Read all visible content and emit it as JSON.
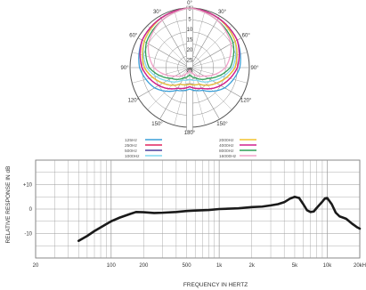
{
  "chart_data": [
    {
      "type": "polar",
      "title": "",
      "angle_labels": [
        "0°",
        "30°",
        "30°",
        "60°",
        "60°",
        "90°",
        "90°",
        "120°",
        "120°",
        "150°",
        "150°",
        "180°"
      ],
      "radial_labels": [
        "0",
        "5",
        "10",
        "15",
        "20",
        "25",
        "dB"
      ],
      "radial_unit": "dB",
      "rlim": [
        -25,
        0
      ],
      "series": [
        {
          "name": "125Hz",
          "color": "#3a9fd8",
          "points": [
            [
              0,
              0
            ],
            [
              30,
              -1
            ],
            [
              60,
              -2
            ],
            [
              90,
              -4
            ],
            [
              120,
              -8
            ],
            [
              150,
              -14
            ],
            [
              180,
              -16
            ],
            [
              210,
              -14
            ],
            [
              240,
              -8
            ],
            [
              270,
              -4
            ],
            [
              300,
              -2
            ],
            [
              330,
              -1
            ]
          ]
        },
        {
          "name": "250Hz",
          "color": "#e0245e",
          "points": [
            [
              0,
              0
            ],
            [
              30,
              -1
            ],
            [
              60,
              -2
            ],
            [
              90,
              -5
            ],
            [
              120,
              -10
            ],
            [
              150,
              -15
            ],
            [
              180,
              -17
            ],
            [
              210,
              -15
            ],
            [
              240,
              -10
            ],
            [
              270,
              -5
            ],
            [
              300,
              -2
            ],
            [
              330,
              -1
            ]
          ]
        },
        {
          "name": "500Hz",
          "color": "#4b3f9c",
          "points": [
            [
              0,
              0
            ],
            [
              30,
              -1
            ],
            [
              60,
              -3
            ],
            [
              90,
              -6
            ],
            [
              120,
              -12
            ],
            [
              150,
              -17
            ],
            [
              180,
              -18
            ],
            [
              210,
              -17
            ],
            [
              240,
              -12
            ],
            [
              270,
              -6
            ],
            [
              300,
              -3
            ],
            [
              330,
              -1
            ]
          ]
        },
        {
          "name": "1000Hz",
          "color": "#7fd8ef",
          "points": [
            [
              0,
              0
            ],
            [
              30,
              -1
            ],
            [
              60,
              -3
            ],
            [
              90,
              -7
            ],
            [
              120,
              -14
            ],
            [
              150,
              -19
            ],
            [
              180,
              -20
            ],
            [
              210,
              -19
            ],
            [
              240,
              -14
            ],
            [
              270,
              -7
            ],
            [
              300,
              -3
            ],
            [
              330,
              -1
            ]
          ]
        },
        {
          "name": "2000Hz",
          "color": "#f2c32e",
          "points": [
            [
              0,
              0
            ],
            [
              30,
              -1
            ],
            [
              60,
              -3
            ],
            [
              90,
              -6
            ],
            [
              120,
              -12
            ],
            [
              150,
              -17
            ],
            [
              180,
              -18
            ],
            [
              210,
              -17
            ],
            [
              240,
              -12
            ],
            [
              270,
              -6
            ],
            [
              300,
              -3
            ],
            [
              330,
              -1
            ]
          ]
        },
        {
          "name": "4000Hz",
          "color": "#d0218f",
          "points": [
            [
              0,
              0
            ],
            [
              30,
              -1
            ],
            [
              60,
              -2
            ],
            [
              90,
              -5
            ],
            [
              120,
              -10
            ],
            [
              150,
              -15
            ],
            [
              180,
              -17
            ],
            [
              210,
              -15
            ],
            [
              240,
              -10
            ],
            [
              270,
              -5
            ],
            [
              300,
              -2
            ],
            [
              330,
              -1
            ]
          ]
        },
        {
          "name": "8000Hz",
          "color": "#2f9f57",
          "points": [
            [
              0,
              0
            ],
            [
              30,
              -2
            ],
            [
              60,
              -4
            ],
            [
              90,
              -8
            ],
            [
              120,
              -16
            ],
            [
              150,
              -20
            ],
            [
              180,
              -22
            ],
            [
              210,
              -20
            ],
            [
              240,
              -16
            ],
            [
              270,
              -8
            ],
            [
              300,
              -4
            ],
            [
              330,
              -2
            ]
          ]
        },
        {
          "name": "16000Hz",
          "color": "#f2a0c8",
          "points": [
            [
              0,
              0
            ],
            [
              30,
              -2
            ],
            [
              60,
              -5
            ],
            [
              90,
              -10
            ],
            [
              120,
              -18
            ],
            [
              150,
              -22
            ],
            [
              180,
              -24
            ],
            [
              210,
              -22
            ],
            [
              240,
              -18
            ],
            [
              270,
              -10
            ],
            [
              300,
              -5
            ],
            [
              330,
              -2
            ]
          ]
        }
      ]
    },
    {
      "type": "line",
      "title": "",
      "xlabel": "FREQUENCY IN HERTZ",
      "ylabel": "RELATIVE RESPONSE IN dB",
      "xscale": "log",
      "xlim": [
        20,
        20000
      ],
      "ylim": [
        -20,
        20
      ],
      "xticks": [
        {
          "value": 20,
          "label": "20"
        },
        {
          "value": 100,
          "label": "100"
        },
        {
          "value": 200,
          "label": "200"
        },
        {
          "value": 500,
          "label": "500"
        },
        {
          "value": 1000,
          "label": "1k"
        },
        {
          "value": 2000,
          "label": "2k"
        },
        {
          "value": 5000,
          "label": "5k"
        },
        {
          "value": 10000,
          "label": "10k"
        },
        {
          "value": 20000,
          "label": "20kH"
        }
      ],
      "yticks": [
        {
          "value": 10,
          "label": "+10"
        },
        {
          "value": 0,
          "label": "0"
        },
        {
          "value": -10,
          "label": "-10"
        }
      ],
      "grid": true,
      "series": [
        {
          "color": "#1a1a1a",
          "points": [
            [
              50,
              -13
            ],
            [
              60,
              -11
            ],
            [
              70,
              -9
            ],
            [
              80,
              -7.5
            ],
            [
              100,
              -5
            ],
            [
              120,
              -3.5
            ],
            [
              150,
              -2
            ],
            [
              170,
              -1.2
            ],
            [
              200,
              -1.3
            ],
            [
              250,
              -1.6
            ],
            [
              300,
              -1.5
            ],
            [
              400,
              -1.2
            ],
            [
              500,
              -0.8
            ],
            [
              600,
              -0.6
            ],
            [
              800,
              -0.4
            ],
            [
              1000,
              0
            ],
            [
              1500,
              0.3
            ],
            [
              2000,
              0.8
            ],
            [
              2500,
              1
            ],
            [
              3000,
              1.5
            ],
            [
              3500,
              2
            ],
            [
              4000,
              2.8
            ],
            [
              4500,
              4.2
            ],
            [
              5000,
              5
            ],
            [
              5500,
              4.5
            ],
            [
              6000,
              2
            ],
            [
              6500,
              -0.5
            ],
            [
              7000,
              -1.2
            ],
            [
              7500,
              -1
            ],
            [
              8000,
              0.5
            ],
            [
              9000,
              3
            ],
            [
              9500,
              4.3
            ],
            [
              10000,
              4.5
            ],
            [
              11000,
              2
            ],
            [
              12000,
              -1.5
            ],
            [
              13000,
              -3
            ],
            [
              14000,
              -3.5
            ],
            [
              15000,
              -4
            ],
            [
              17000,
              -6
            ],
            [
              19000,
              -7.5
            ],
            [
              20000,
              -8
            ]
          ]
        }
      ]
    }
  ]
}
